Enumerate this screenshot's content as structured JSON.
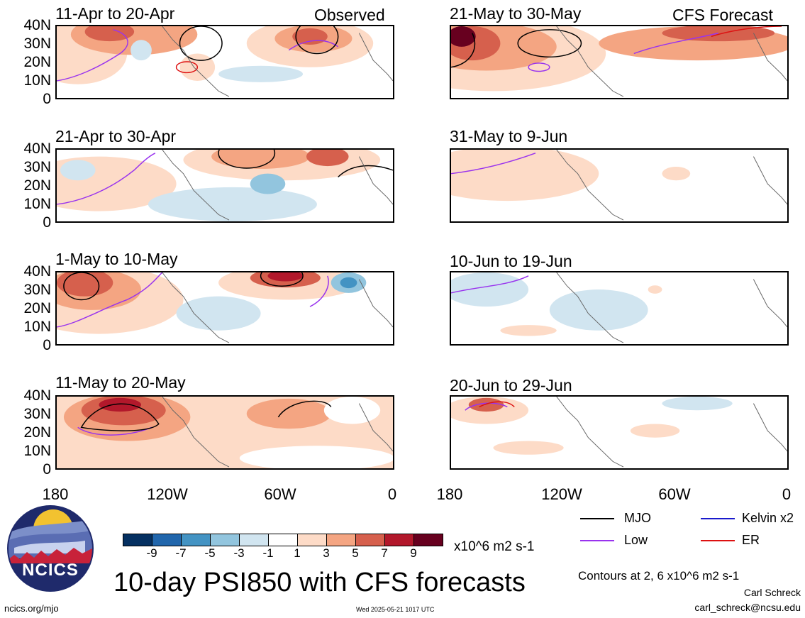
{
  "panels_left": [
    {
      "title": "11-Apr to 20-Apr",
      "tag": "Observed"
    },
    {
      "title": "21-Apr to 30-Apr",
      "tag": ""
    },
    {
      "title": "1-May to 10-May",
      "tag": ""
    },
    {
      "title": "11-May to 20-May",
      "tag": ""
    }
  ],
  "panels_right": [
    {
      "title": "21-May to 30-May",
      "tag": "CFS Forecast"
    },
    {
      "title": "31-May to 9-Jun",
      "tag": ""
    },
    {
      "title": "10-Jun to 19-Jun",
      "tag": ""
    },
    {
      "title": "20-Jun to 29-Jun",
      "tag": ""
    }
  ],
  "lat_labels": [
    "40N",
    "30N",
    "20N",
    "10N",
    "0"
  ],
  "lon_labels": [
    "180",
    "120W",
    "60W",
    "0"
  ],
  "colorbar": {
    "labels": [
      "-9",
      "-7",
      "-5",
      "-3",
      "-1",
      "1",
      "3",
      "5",
      "7",
      "9"
    ],
    "colors": [
      "#053061",
      "#2166ac",
      "#4393c3",
      "#92c5de",
      "#d1e5f0",
      "#ffffff",
      "#fddbc7",
      "#f4a582",
      "#d6604d",
      "#b2182b",
      "#67001f"
    ],
    "units": "x10^6 m2 s-1"
  },
  "legend": [
    {
      "label": "MJO",
      "color": "#000000"
    },
    {
      "label": "Kelvin x2",
      "color": "#1a1acc"
    },
    {
      "label": "Low",
      "color": "#9933ee"
    },
    {
      "label": "ER",
      "color": "#dd1111"
    }
  ],
  "main_title": "10-day PSI850 with CFS forecasts",
  "contour_note": "Contours at 2, 6 x10^6 m2 s-1",
  "author": "Carl Schreck",
  "email": "carl_schreck@ncsu.edu",
  "website": "ncics.org/mjo",
  "timestamp": "Wed 2025-05-21 1017 UTC",
  "logo_text": "NCICS"
}
